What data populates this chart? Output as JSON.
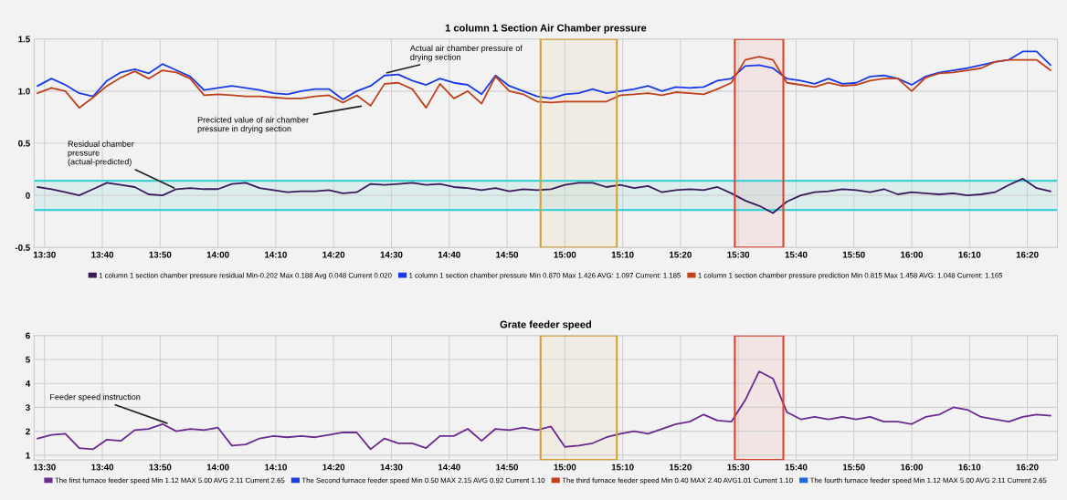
{
  "chart_data": [
    {
      "type": "line",
      "title": "1 column 1 Section Air Chamber pressure",
      "x": [
        13.48,
        13.52,
        13.56,
        13.6,
        13.64,
        13.68,
        13.72,
        13.76,
        13.8,
        13.84,
        13.88,
        13.92,
        13.96,
        14.0,
        14.04,
        14.08,
        14.12,
        14.16,
        14.2,
        14.24,
        14.28,
        14.32,
        14.36,
        14.4,
        14.44,
        14.48,
        14.52,
        14.56,
        14.6,
        14.64,
        14.68,
        14.72,
        14.76,
        14.8,
        14.84,
        14.88,
        14.92,
        14.96,
        15.0,
        15.04,
        15.08,
        15.12,
        15.16,
        15.2,
        15.24,
        15.28,
        15.32,
        15.36,
        15.4,
        15.44,
        15.48,
        15.52,
        15.56,
        15.6,
        15.64,
        15.68,
        15.72,
        15.76,
        15.8,
        15.84,
        15.88,
        15.92,
        15.96,
        16.0,
        16.04,
        16.08,
        16.12,
        16.16,
        16.2,
        16.24,
        16.28,
        16.32,
        16.36,
        16.4
      ],
      "series": [
        {
          "name": "1 column 1 section chamber pressure residual Min-0.202 Max 0.188 Avg 0.048 Current 0.020",
          "color": "#3a1a5a",
          "values": [
            0.08,
            0.06,
            0.03,
            0.0,
            0.06,
            0.12,
            0.1,
            0.08,
            0.01,
            0.0,
            0.06,
            0.07,
            0.06,
            0.06,
            0.11,
            0.12,
            0.07,
            0.05,
            0.03,
            0.04,
            0.04,
            0.05,
            0.02,
            0.03,
            0.11,
            0.1,
            0.11,
            0.12,
            0.1,
            0.11,
            0.08,
            0.07,
            0.05,
            0.07,
            0.04,
            0.06,
            0.05,
            0.06,
            0.1,
            0.12,
            0.12,
            0.08,
            0.1,
            0.07,
            0.09,
            0.03,
            0.05,
            0.06,
            0.05,
            0.08,
            0.02,
            -0.05,
            -0.1,
            -0.17,
            -0.06,
            0.0,
            0.03,
            0.04,
            0.06,
            0.05,
            0.03,
            0.06,
            0.01,
            0.03,
            0.02,
            0.01,
            0.02,
            0.0,
            0.01,
            0.03,
            0.1,
            0.16,
            0.07,
            0.04
          ]
        },
        {
          "name": "1 column 1 section chamber pressure Min 0.870 Max 1.426 AVG: 1.097 Current: 1.185",
          "color": "#1a3be8",
          "values": [
            1.05,
            1.12,
            1.06,
            0.98,
            0.95,
            1.1,
            1.18,
            1.21,
            1.17,
            1.26,
            1.2,
            1.14,
            1.01,
            1.03,
            1.05,
            1.03,
            1.01,
            0.98,
            0.97,
            1.0,
            1.02,
            1.02,
            0.92,
            1.0,
            1.05,
            1.15,
            1.16,
            1.1,
            1.06,
            1.12,
            1.08,
            1.06,
            0.97,
            1.15,
            1.05,
            1.0,
            0.95,
            0.93,
            0.97,
            0.98,
            1.02,
            0.98,
            1.0,
            1.02,
            1.05,
            1.0,
            1.04,
            1.03,
            1.04,
            1.1,
            1.12,
            1.24,
            1.25,
            1.22,
            1.12,
            1.1,
            1.07,
            1.12,
            1.07,
            1.08,
            1.14,
            1.15,
            1.12,
            1.06,
            1.14,
            1.18,
            1.2,
            1.22,
            1.25,
            1.28,
            1.3,
            1.38,
            1.38,
            1.25
          ]
        },
        {
          "name": "1 column 1 section chamber pressure prediction Min 0.815 Max 1.458 AVG: 1.048 Current: 1.165",
          "color": "#c0401a",
          "values": [
            0.98,
            1.03,
            1.0,
            0.84,
            0.94,
            1.05,
            1.13,
            1.19,
            1.12,
            1.2,
            1.18,
            1.12,
            0.96,
            0.97,
            0.96,
            0.95,
            0.95,
            0.94,
            0.93,
            0.93,
            0.95,
            0.96,
            0.89,
            0.96,
            0.86,
            1.07,
            1.08,
            1.02,
            0.84,
            1.07,
            0.93,
            1.0,
            0.88,
            1.14,
            1.0,
            0.97,
            0.9,
            0.89,
            0.9,
            0.9,
            0.9,
            0.9,
            0.96,
            0.97,
            0.98,
            0.96,
            0.99,
            0.98,
            0.97,
            1.02,
            1.08,
            1.3,
            1.33,
            1.3,
            1.08,
            1.06,
            1.04,
            1.08,
            1.05,
            1.06,
            1.1,
            1.12,
            1.12,
            1.0,
            1.13,
            1.17,
            1.18,
            1.2,
            1.22,
            1.28,
            1.3,
            1.3,
            1.3,
            1.2
          ]
        }
      ],
      "xlim": [
        13.47,
        16.42
      ],
      "xticks": [
        {
          "value": 13.5,
          "label": "13:30"
        },
        {
          "value": 13.6667,
          "label": "13:40"
        },
        {
          "value": 13.8333,
          "label": "13:50"
        },
        {
          "value": 14.0,
          "label": "14:00"
        },
        {
          "value": 14.1667,
          "label": "14:10"
        },
        {
          "value": 14.3333,
          "label": "14:20"
        },
        {
          "value": 14.5,
          "label": "14:30"
        },
        {
          "value": 14.6667,
          "label": "14:40"
        },
        {
          "value": 14.8333,
          "label": "14:50"
        },
        {
          "value": 15.0,
          "label": "15:00"
        },
        {
          "value": 15.1667,
          "label": "15:10"
        },
        {
          "value": 15.3333,
          "label": "15:20"
        },
        {
          "value": 15.5,
          "label": "15:30"
        },
        {
          "value": 15.6667,
          "label": "15:40"
        },
        {
          "value": 15.8333,
          "label": "15:50"
        },
        {
          "value": 16.0,
          "label": "16:00"
        },
        {
          "value": 16.1667,
          "label": "16:10"
        },
        {
          "value": 16.3333,
          "label": "16:20"
        }
      ],
      "ylim": [
        -0.5,
        1.5
      ],
      "yticks": [
        -0.5,
        0,
        0.5,
        {
          "value": 1,
          "label": "1.0"
        },
        1.5
      ],
      "ref_lines": [
        {
          "axis": "y",
          "value": 0.14,
          "color": "#40d0d8"
        },
        {
          "axis": "y",
          "value": -0.14,
          "color": "#40d0d8"
        }
      ],
      "bands": [
        {
          "axis": "y",
          "from": -0.14,
          "to": 0.14,
          "color": "#40d0d8"
        },
        {
          "axis": "x",
          "from": 14.93,
          "to": 15.15,
          "color": "#d4a030"
        },
        {
          "axis": "x",
          "from": 15.49,
          "to": 15.63,
          "color": "#e04030"
        }
      ],
      "annotations": [
        {
          "text": "Actual air chamber pressure of\ndrying section",
          "x": 14.48,
          "y": 1.17
        },
        {
          "text": "Precicted value of air chamber\npressure in drying section",
          "x": 14.42,
          "y": 0.86
        },
        {
          "text": "Residual chamber\npressure\n(actual-predicted)",
          "x": 13.88,
          "y": 0.06
        }
      ],
      "grid": true,
      "legend": "bottom",
      "line_style": "solid",
      "marker": "none"
    },
    {
      "type": "line",
      "title": "Grate feeder speed",
      "x": [
        13.48,
        13.52,
        13.56,
        13.6,
        13.64,
        13.68,
        13.72,
        13.76,
        13.8,
        13.84,
        13.88,
        13.92,
        13.96,
        14.0,
        14.04,
        14.08,
        14.12,
        14.16,
        14.2,
        14.24,
        14.28,
        14.32,
        14.36,
        14.4,
        14.44,
        14.48,
        14.52,
        14.56,
        14.6,
        14.64,
        14.68,
        14.72,
        14.76,
        14.8,
        14.84,
        14.88,
        14.92,
        14.96,
        15.0,
        15.04,
        15.08,
        15.12,
        15.16,
        15.2,
        15.24,
        15.28,
        15.32,
        15.36,
        15.4,
        15.44,
        15.48,
        15.52,
        15.56,
        15.6,
        15.64,
        15.68,
        15.72,
        15.76,
        15.8,
        15.84,
        15.88,
        15.92,
        15.96,
        16.0,
        16.04,
        16.08,
        16.12,
        16.16,
        16.2,
        16.24,
        16.28,
        16.32,
        16.36,
        16.4
      ],
      "series": [
        {
          "name": "The first furnace feeder speed Min 1.12 MAX 5.00 AVG 2.11 Current 2.65",
          "color": "#6a2a90",
          "values": [
            1.7,
            1.85,
            1.9,
            1.3,
            1.25,
            1.65,
            1.6,
            2.05,
            2.1,
            2.3,
            2.0,
            2.1,
            2.05,
            2.15,
            1.4,
            1.45,
            1.7,
            1.8,
            1.75,
            1.8,
            1.75,
            1.85,
            1.95,
            1.95,
            1.25,
            1.7,
            1.5,
            1.5,
            1.3,
            1.8,
            1.8,
            2.1,
            1.6,
            2.1,
            2.05,
            2.15,
            2.05,
            2.2,
            1.35,
            1.4,
            1.5,
            1.75,
            1.9,
            2.0,
            1.9,
            2.1,
            2.3,
            2.4,
            2.7,
            2.45,
            2.4,
            3.3,
            4.5,
            4.2,
            2.8,
            2.5,
            2.6,
            2.5,
            2.6,
            2.5,
            2.6,
            2.4,
            2.4,
            2.3,
            2.6,
            2.7,
            3.0,
            2.9,
            2.6,
            2.5,
            2.4,
            2.6,
            2.7,
            2.65
          ]
        },
        {
          "name": "The Second furnace feeder speed Min 0.50 MAX 2.15 AVG 0.92 Current 1.10",
          "color": "#1a3be8",
          "values": [
            null,
            null,
            null,
            null,
            null,
            null,
            null,
            null,
            null,
            null,
            null,
            null,
            null,
            null,
            null,
            null,
            null,
            null,
            null,
            null,
            null,
            null,
            null,
            null,
            null,
            null,
            null,
            null,
            null,
            null,
            null,
            null,
            null,
            null,
            null,
            null,
            null,
            null,
            null,
            null,
            null,
            null,
            null,
            null,
            null,
            null,
            null,
            null,
            null,
            null,
            null,
            null,
            null,
            null,
            null,
            null,
            null,
            null,
            null,
            null,
            null,
            null,
            null,
            null,
            null,
            null,
            null,
            null,
            null,
            null,
            null,
            null,
            null,
            null
          ]
        },
        {
          "name": "The third furnace feeder speed Min 0.40 MAX 2.40 AVG1.01 Current 1.10",
          "color": "#c0401a",
          "values": [
            null,
            null,
            null,
            null,
            null,
            null,
            null,
            null,
            null,
            null,
            null,
            null,
            null,
            null,
            null,
            null,
            null,
            null,
            null,
            null,
            null,
            null,
            null,
            null,
            null,
            null,
            null,
            null,
            null,
            null,
            null,
            null,
            null,
            null,
            null,
            null,
            null,
            null,
            null,
            null,
            null,
            null,
            null,
            null,
            null,
            null,
            null,
            null,
            null,
            null,
            null,
            null,
            null,
            null,
            null,
            null,
            null,
            null,
            null,
            null,
            null,
            null,
            null,
            null,
            null,
            null,
            null,
            null,
            null,
            null,
            null,
            null,
            null,
            null
          ]
        },
        {
          "name": "The fourth furnace feeder speed Min 1.12 MAX 5.00 AVG 2.11 Current 2.65",
          "color": "#1a6ae0",
          "values": [
            null,
            null,
            null,
            null,
            null,
            null,
            null,
            null,
            null,
            null,
            null,
            null,
            null,
            null,
            null,
            null,
            null,
            null,
            null,
            null,
            null,
            null,
            null,
            null,
            null,
            null,
            null,
            null,
            null,
            null,
            null,
            null,
            null,
            null,
            null,
            null,
            null,
            null,
            null,
            null,
            null,
            null,
            null,
            null,
            null,
            null,
            null,
            null,
            null,
            null,
            null,
            null,
            null,
            null,
            null,
            null,
            null,
            null,
            null,
            null,
            null,
            null,
            null,
            null,
            null,
            null,
            null,
            null,
            null,
            null,
            null,
            null,
            null,
            null
          ]
        }
      ],
      "xlim": [
        13.47,
        16.42
      ],
      "xticks": [
        {
          "value": 13.5,
          "label": "13:30"
        },
        {
          "value": 13.6667,
          "label": "13:40"
        },
        {
          "value": 13.8333,
          "label": "13:50"
        },
        {
          "value": 14.0,
          "label": "14:00"
        },
        {
          "value": 14.1667,
          "label": "14:10"
        },
        {
          "value": 14.3333,
          "label": "14:20"
        },
        {
          "value": 14.5,
          "label": "14:30"
        },
        {
          "value": 14.6667,
          "label": "14:40"
        },
        {
          "value": 14.8333,
          "label": "14:50"
        },
        {
          "value": 15.0,
          "label": "15:00"
        },
        {
          "value": 15.1667,
          "label": "15:10"
        },
        {
          "value": 15.3333,
          "label": "15:20"
        },
        {
          "value": 15.5,
          "label": "15:30"
        },
        {
          "value": 15.6667,
          "label": "15:40"
        },
        {
          "value": 15.8333,
          "label": "15:50"
        },
        {
          "value": 16.0,
          "label": "16:00"
        },
        {
          "value": 16.1667,
          "label": "16:10"
        },
        {
          "value": 16.3333,
          "label": "16:20"
        }
      ],
      "ylim": [
        0.8,
        6
      ],
      "yticks": [
        1,
        2,
        3,
        4,
        5,
        6
      ],
      "bands": [
        {
          "axis": "x",
          "from": 14.93,
          "to": 15.15,
          "color": "#d4a030"
        },
        {
          "axis": "x",
          "from": 15.49,
          "to": 15.63,
          "color": "#e04030"
        }
      ],
      "annotations": [
        {
          "text": "Feeder speed instruction",
          "x": 13.86,
          "y": 2.3
        }
      ],
      "grid": true,
      "legend": "bottom",
      "line_style": "solid",
      "marker": "none"
    }
  ]
}
